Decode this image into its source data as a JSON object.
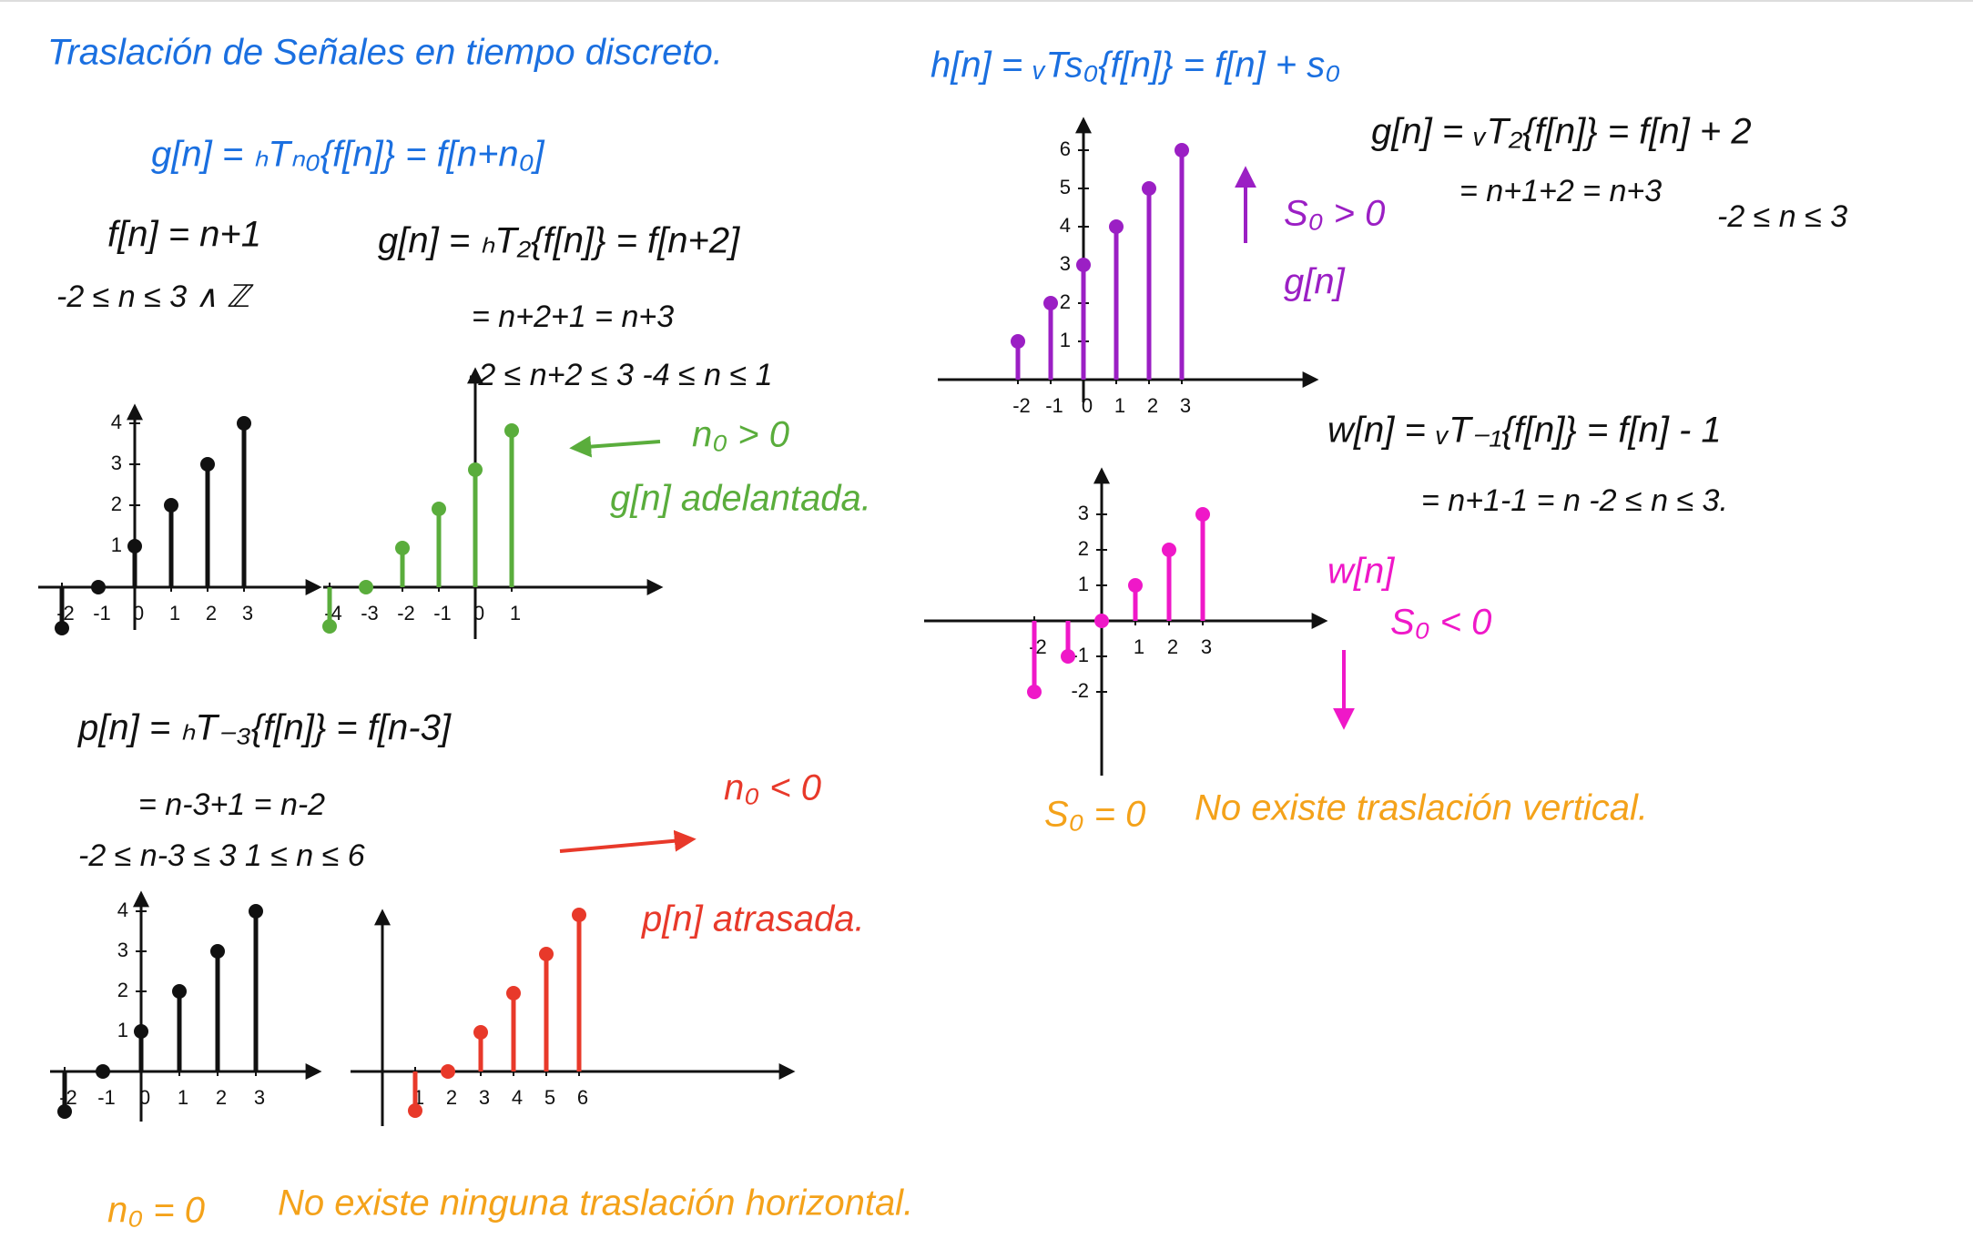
{
  "title": "Traslación de Señales en tiempo discreto.",
  "horizontal": {
    "definition": "g[n] = ₕTₙ₀{f[n]} = f[n+n₀]",
    "signal": "f[n] = n+1",
    "domain": "-2 ≤ n ≤ 3 ∧ ℤ",
    "advance": {
      "equation": "g[n] = ₕT₂{f[n]} = f[n+2]",
      "result": "= n+2+1 = n+3",
      "range": "-2 ≤ n+2 ≤ 3    -4 ≤ n ≤ 1",
      "condition": "n₀ > 0",
      "note": "g[n] adelantada."
    },
    "delay": {
      "equation": "p[n] = ₕT₋₃{f[n]} = f[n-3]",
      "result": "= n-3+1 = n-2",
      "range": "-2 ≤ n-3 ≤ 3    1 ≤ n ≤ 6",
      "condition": "n₀ < 0",
      "note": "p[n] atrasada."
    },
    "none": {
      "condition": "n₀ = 0",
      "note": "No existe ninguna traslación horizontal."
    }
  },
  "vertical": {
    "definition": "h[n] = ᵥTs₀{f[n]} = f[n] + s₀",
    "up": {
      "equation": "g[n] = ᵥT₂{f[n]} = f[n] + 2",
      "result": "= n+1+2 = n+3",
      "range": "-2 ≤ n ≤ 3",
      "condition": "S₀ > 0",
      "label": "g[n]"
    },
    "down": {
      "equation": "w[n] = ᵥT₋₁{f[n]} = f[n] - 1",
      "result": "= n+1-1 = n    -2 ≤ n ≤ 3.",
      "label": "w[n]",
      "condition": "S₀ < 0"
    },
    "none": {
      "condition": "S₀ = 0",
      "note": "No existe traslación vertical."
    }
  },
  "plots": [
    {
      "color": "#111111",
      "n": [
        -2,
        -1,
        0,
        1,
        2,
        3
      ],
      "values": [
        -1,
        0,
        1,
        2,
        3,
        4
      ],
      "xticks": [
        -2,
        -1,
        0,
        1,
        2,
        3
      ],
      "yticks": [
        1,
        2,
        3,
        4
      ]
    },
    {
      "color": "#5aad3c",
      "n": [
        -4,
        -3,
        -2,
        -1,
        0,
        1
      ],
      "values": [
        -1,
        0,
        1,
        2,
        3,
        4
      ],
      "xticks": [
        -4,
        -3,
        -2,
        -1,
        0,
        1
      ],
      "yticks": []
    },
    {
      "color": "#111111",
      "n": [
        -2,
        -1,
        0,
        1,
        2,
        3
      ],
      "values": [
        -1,
        0,
        1,
        2,
        3,
        4
      ],
      "xticks": [
        -2,
        -1,
        0,
        1,
        2,
        3
      ],
      "yticks": [
        1,
        2,
        3,
        4
      ]
    },
    {
      "color": "#e8392a",
      "n": [
        1,
        2,
        3,
        4,
        5,
        6
      ],
      "values": [
        -1,
        0,
        1,
        2,
        3,
        4
      ],
      "xticks": [
        1,
        2,
        3,
        4,
        5,
        6
      ],
      "yticks": []
    },
    {
      "color": "#9b1fc4",
      "n": [
        -2,
        -1,
        0,
        1,
        2,
        3
      ],
      "values": [
        1,
        2,
        3,
        4,
        5,
        6
      ],
      "xticks": [
        -2,
        -1,
        0,
        1,
        2,
        3
      ],
      "yticks": [
        1,
        2,
        3,
        4,
        5,
        6
      ]
    },
    {
      "color": "#ef18c8",
      "n": [
        -2,
        -1,
        0,
        1,
        2,
        3
      ],
      "values": [
        -2,
        -1,
        0,
        1,
        2,
        3
      ],
      "xticks": [
        -2,
        1,
        2,
        3
      ],
      "yticks": [
        -2,
        -1,
        1,
        2,
        3
      ]
    }
  ]
}
